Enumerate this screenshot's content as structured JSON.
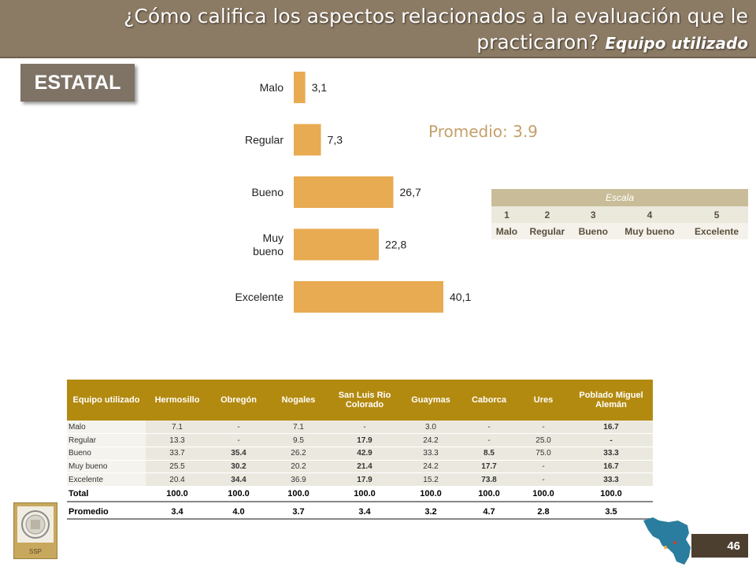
{
  "header": {
    "title": "¿Cómo califica los aspectos relacionados a la evaluación que le practicaron?",
    "subtitle": "Equipo utilizado"
  },
  "badge": "ESTATAL",
  "promedio": "Promedio: 3.9",
  "chart_data": {
    "type": "bar",
    "orientation": "horizontal",
    "categories": [
      "Malo",
      "Regular",
      "Bueno",
      "Muy bueno",
      "Excelente"
    ],
    "values": [
      3.1,
      7.3,
      26.7,
      22.8,
      40.1
    ],
    "value_labels": [
      "3,1",
      "7,3",
      "26,7",
      "22,8",
      "40,1"
    ],
    "color": "#e8ab52"
  },
  "escala": {
    "title": "Escala",
    "numbers": [
      "1",
      "2",
      "3",
      "4",
      "5"
    ],
    "labels": [
      "Malo",
      "Regular",
      "Bueno",
      "Muy bueno",
      "Excelente"
    ]
  },
  "table": {
    "headers": [
      "Equipo utilizado",
      "Hermosillo",
      "Obregón",
      "Nogales",
      "San Luis Rio Colorado",
      "Guaymas",
      "Caborca",
      "Ures",
      "Poblado Miguel Alemán"
    ],
    "rows": [
      [
        "Malo",
        "7.1",
        "-",
        "7.1",
        "-",
        "3.0",
        "-",
        "-",
        "16.7"
      ],
      [
        "Regular",
        "13.3",
        "-",
        "9.5",
        "17.9",
        "24.2",
        "-",
        "25.0",
        "-"
      ],
      [
        "Bueno",
        "33.7",
        "35.4",
        "26.2",
        "42.9",
        "33.3",
        "8.5",
        "75.0",
        "33.3"
      ],
      [
        "Muy bueno",
        "25.5",
        "30.2",
        "20.2",
        "21.4",
        "24.2",
        "17.7",
        "-",
        "16.7"
      ],
      [
        "Excelente",
        "20.4",
        "34.4",
        "36.9",
        "17.9",
        "15.2",
        "73.8",
        "-",
        "33.3"
      ]
    ],
    "total": [
      "Total",
      "100.0",
      "100.0",
      "100.0",
      "100.0",
      "100.0",
      "100.0",
      "100.0",
      "100.0"
    ],
    "promedio": [
      "Promedio",
      "3.4",
      "4.0",
      "3.7",
      "3.4",
      "3.2",
      "4.7",
      "2.8",
      "3.5"
    ]
  },
  "logo_text": "SSP",
  "page_number": "46"
}
